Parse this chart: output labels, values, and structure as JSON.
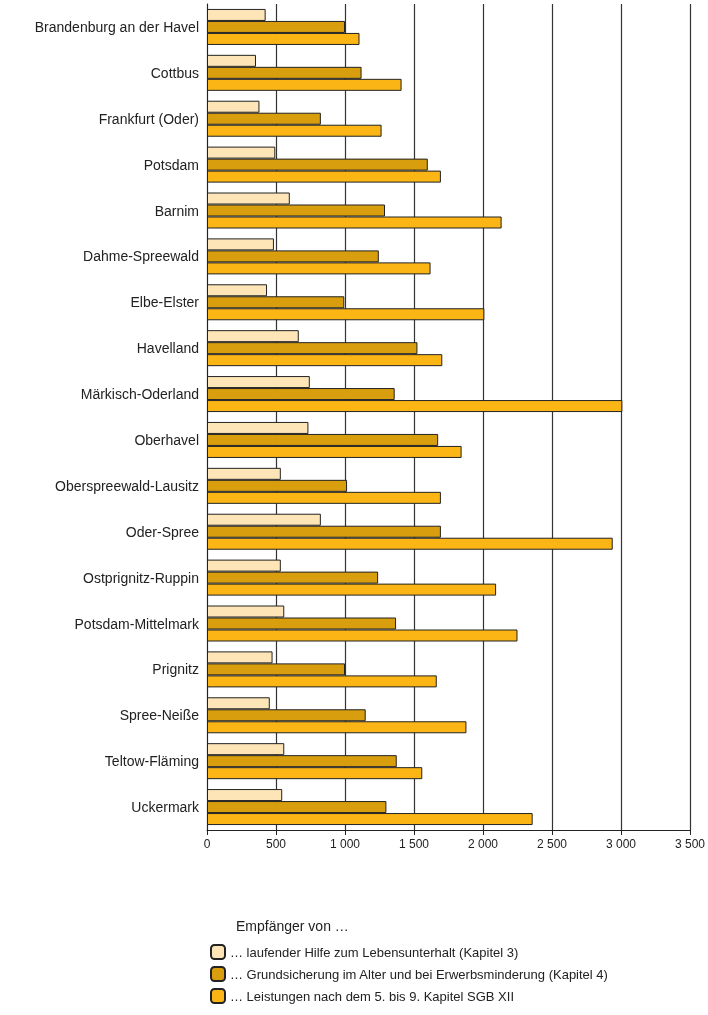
{
  "chart_data": {
    "type": "bar",
    "orientation": "horizontal",
    "legend_title": "Empfänger von …",
    "categories": [
      "Brandenburg an der Havel",
      "Cottbus",
      "Frankfurt (Oder)",
      "Potsdam",
      "Barnim",
      "Dahme-Spreewald",
      "Elbe-Elster",
      "Havelland",
      "Märkisch-Oderland",
      "Oberhavel",
      "Oberspreewald-Lausitz",
      "Oder-Spree",
      "Ostprignitz-Ruppin",
      "Potsdam-Mittelmark",
      "Prignitz",
      "Spree-Neiße",
      "Teltow-Fläming",
      "Uckermark"
    ],
    "series": [
      {
        "name": "… laufender Hilfe zum Lebensunterhalt (Kapitel 3)",
        "color": "#fde5b8",
        "values": [
          425,
          355,
          380,
          495,
          600,
          485,
          435,
          665,
          745,
          735,
          535,
          825,
          535,
          560,
          475,
          455,
          560,
          545
        ]
      },
      {
        "name": "… Grundsicherung im Alter und bei Erwerbsminderung (Kapitel 4)",
        "color": "#d89e0e",
        "values": [
          1000,
          1120,
          825,
          1600,
          1290,
          1245,
          995,
          1525,
          1360,
          1675,
          1015,
          1695,
          1240,
          1370,
          1000,
          1150,
          1375,
          1300
        ]
      },
      {
        "name": "… Leistungen nach dem 5. bis 9. Kapitel SGB XII",
        "color": "#fbb616",
        "values": [
          1105,
          1410,
          1265,
          1695,
          2135,
          1620,
          2010,
          1705,
          3010,
          1845,
          1695,
          2940,
          2095,
          2250,
          1665,
          1880,
          1560,
          2360
        ]
      }
    ],
    "xlim": [
      0,
      3500
    ],
    "xticks": [
      0,
      500,
      {
        "value": 1000,
        "label": "1 000"
      },
      {
        "value": 1500,
        "label": "1 500"
      },
      {
        "value": 2000,
        "label": "2 000"
      },
      {
        "value": 2500,
        "label": "2 500"
      },
      {
        "value": 3000,
        "label": "3 000"
      },
      {
        "value": 3500,
        "label": "3 500"
      }
    ],
    "grid": "x",
    "legend": "bottom"
  }
}
